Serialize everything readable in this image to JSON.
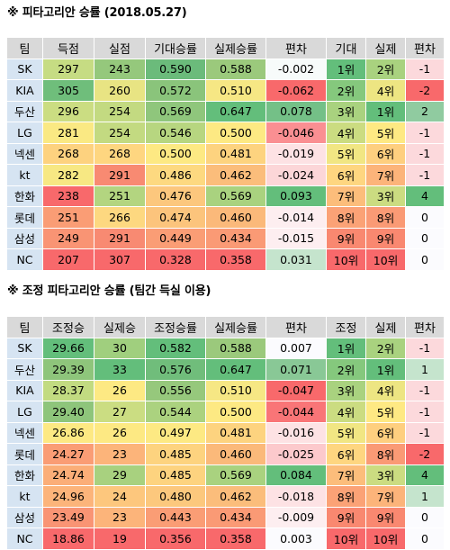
{
  "section1": {
    "title": "※ 피타고리안 승률 (2018.05.27)",
    "headers": [
      "팀",
      "득점",
      "실점",
      "기대승률",
      "실제승률",
      "편차",
      "기대",
      "실제",
      "편차"
    ],
    "rows": [
      [
        {
          "t": "SK"
        },
        {
          "t": "297",
          "c": "#c6dc83"
        },
        {
          "t": "243",
          "c": "#95c87c"
        },
        {
          "t": "0.590",
          "c": "#6bbb7b"
        },
        {
          "t": "0.588",
          "c": "#9bc97c"
        },
        {
          "t": "-0.002",
          "c": "#f7fbfa"
        },
        {
          "t": "1위",
          "c": "#63be7b"
        },
        {
          "t": "2위",
          "c": "#a9d27f"
        },
        {
          "t": "-1",
          "c": "#fcd9dc"
        }
      ],
      [
        {
          "t": "KIA"
        },
        {
          "t": "305",
          "c": "#6fbe7b"
        },
        {
          "t": "260",
          "c": "#e8e483"
        },
        {
          "t": "0.572",
          "c": "#8ac47b"
        },
        {
          "t": "0.510",
          "c": "#f6e784"
        },
        {
          "t": "-0.062",
          "c": "#f8696b"
        },
        {
          "t": "2위",
          "c": "#85c87d"
        },
        {
          "t": "4위",
          "c": "#ede582"
        },
        {
          "t": "-2",
          "c": "#f8696b"
        }
      ],
      [
        {
          "t": "두산"
        },
        {
          "t": "296",
          "c": "#cbdd82"
        },
        {
          "t": "254",
          "c": "#c3da81"
        },
        {
          "t": "0.569",
          "c": "#8fc67c"
        },
        {
          "t": "0.647",
          "c": "#63be7b"
        },
        {
          "t": "0.078",
          "c": "#74c087"
        },
        {
          "t": "3위",
          "c": "#a9d27f"
        },
        {
          "t": "1위",
          "c": "#63be7b"
        },
        {
          "t": "2",
          "c": "#90cba0"
        }
      ],
      [
        {
          "t": "LG"
        },
        {
          "t": "281",
          "c": "#fae983"
        },
        {
          "t": "254",
          "c": "#c3da81"
        },
        {
          "t": "0.546",
          "c": "#b7d680"
        },
        {
          "t": "0.500",
          "c": "#fde983"
        },
        {
          "t": "-0.046",
          "c": "#fa8f92"
        },
        {
          "t": "4위",
          "c": "#cbdc81"
        },
        {
          "t": "5위",
          "c": "#fee983"
        },
        {
          "t": "-1",
          "c": "#fcd9dc"
        }
      ],
      [
        {
          "t": "넥센"
        },
        {
          "t": "268",
          "c": "#fdd27f"
        },
        {
          "t": "268",
          "c": "#fed680"
        },
        {
          "t": "0.500",
          "c": "#fde983"
        },
        {
          "t": "0.481",
          "c": "#fdd37f"
        },
        {
          "t": "-0.019",
          "c": "#fde2e4"
        },
        {
          "t": "5위",
          "c": "#f1e683"
        },
        {
          "t": "6위",
          "c": "#fecf7f"
        },
        {
          "t": "-1",
          "c": "#fcd9dc"
        }
      ],
      [
        {
          "t": "kt"
        },
        {
          "t": "282",
          "c": "#f7e883"
        },
        {
          "t": "291",
          "c": "#f88a72"
        },
        {
          "t": "0.486",
          "c": "#fdd980"
        },
        {
          "t": "0.462",
          "c": "#fbbd7b"
        },
        {
          "t": "-0.024",
          "c": "#fcd6d8"
        },
        {
          "t": "6위",
          "c": "#fed680"
        },
        {
          "t": "7위",
          "c": "#fcb47a"
        },
        {
          "t": "-1",
          "c": "#fcd9dc"
        }
      ],
      [
        {
          "t": "한화"
        },
        {
          "t": "238",
          "c": "#f8696b"
        },
        {
          "t": "251",
          "c": "#b3d580"
        },
        {
          "t": "0.476",
          "c": "#fcc77d"
        },
        {
          "t": "0.569",
          "c": "#a9d27f"
        },
        {
          "t": "0.093",
          "c": "#63be7b"
        },
        {
          "t": "7위",
          "c": "#fcbd7b"
        },
        {
          "t": "3위",
          "c": "#cbdc81"
        },
        {
          "t": "4",
          "c": "#63be7b"
        }
      ],
      [
        {
          "t": "롯데"
        },
        {
          "t": "251",
          "c": "#fa9d75"
        },
        {
          "t": "266",
          "c": "#fdd880"
        },
        {
          "t": "0.474",
          "c": "#fcc47c"
        },
        {
          "t": "0.460",
          "c": "#fbb97a"
        },
        {
          "t": "-0.014",
          "c": "#fdeef0"
        },
        {
          "t": "8위",
          "c": "#fba276"
        },
        {
          "t": "8위",
          "c": "#fa9a75"
        },
        {
          "t": "0",
          "c": "#fbfbfe"
        }
      ],
      [
        {
          "t": "삼성"
        },
        {
          "t": "249",
          "c": "#f99474"
        },
        {
          "t": "291",
          "c": "#f88a72"
        },
        {
          "t": "0.449",
          "c": "#fa9d75"
        },
        {
          "t": "0.434",
          "c": "#fa9a75"
        },
        {
          "t": "-0.015",
          "c": "#fdeef0"
        },
        {
          "t": "9위",
          "c": "#f98870"
        },
        {
          "t": "9위",
          "c": "#f98870"
        },
        {
          "t": "0",
          "c": "#fbfbfe"
        }
      ],
      [
        {
          "t": "NC"
        },
        {
          "t": "207",
          "c": "#f8696b"
        },
        {
          "t": "307",
          "c": "#f8696b"
        },
        {
          "t": "0.328",
          "c": "#f8696b"
        },
        {
          "t": "0.358",
          "c": "#f8696b"
        },
        {
          "t": "0.031",
          "c": "#c5e4cd"
        },
        {
          "t": "10위",
          "c": "#f8696b"
        },
        {
          "t": "10위",
          "c": "#f8696b"
        },
        {
          "t": "0",
          "c": "#fbfbfe"
        }
      ]
    ]
  },
  "section2": {
    "title": "※ 조정 피타고리안 승률 (팀간 득실 이용)",
    "headers": [
      "팀",
      "조정승",
      "실제승",
      "조정승률",
      "실제승률",
      "편차",
      "조정",
      "실제",
      "편차"
    ],
    "rows": [
      [
        {
          "t": "SK"
        },
        {
          "t": "29.66",
          "c": "#63be7b"
        },
        {
          "t": "30",
          "c": "#a0cf7e"
        },
        {
          "t": "0.582",
          "c": "#63be7b"
        },
        {
          "t": "0.588",
          "c": "#9bc97c"
        },
        {
          "t": "0.007",
          "c": "#fbfbfe"
        },
        {
          "t": "1위",
          "c": "#63be7b"
        },
        {
          "t": "2위",
          "c": "#a9d27f"
        },
        {
          "t": "-1",
          "c": "#fcd9dc"
        }
      ],
      [
        {
          "t": "두산"
        },
        {
          "t": "29.39",
          "c": "#8ec57b"
        },
        {
          "t": "33",
          "c": "#63be7b"
        },
        {
          "t": "0.576",
          "c": "#70bd7b"
        },
        {
          "t": "0.647",
          "c": "#63be7b"
        },
        {
          "t": "0.071",
          "c": "#89c896"
        },
        {
          "t": "2위",
          "c": "#85c87d"
        },
        {
          "t": "1위",
          "c": "#63be7b"
        },
        {
          "t": "1",
          "c": "#c5e4cd"
        }
      ],
      [
        {
          "t": "KIA"
        },
        {
          "t": "28.37",
          "c": "#c2db81"
        },
        {
          "t": "26",
          "c": "#fde983"
        },
        {
          "t": "0.556",
          "c": "#96c87c"
        },
        {
          "t": "0.510",
          "c": "#f6e784"
        },
        {
          "t": "-0.047",
          "c": "#f8696b"
        },
        {
          "t": "3위",
          "c": "#a9d27f"
        },
        {
          "t": "4위",
          "c": "#ede582"
        },
        {
          "t": "-1",
          "c": "#fcd9dc"
        }
      ],
      [
        {
          "t": "LG"
        },
        {
          "t": "29.40",
          "c": "#8ec57b"
        },
        {
          "t": "27",
          "c": "#cbdd82"
        },
        {
          "t": "0.544",
          "c": "#abd27f"
        },
        {
          "t": "0.500",
          "c": "#fde983"
        },
        {
          "t": "-0.044",
          "c": "#f97577"
        },
        {
          "t": "4위",
          "c": "#cbdc81"
        },
        {
          "t": "5위",
          "c": "#fee983"
        },
        {
          "t": "-1",
          "c": "#fcd9dc"
        }
      ],
      [
        {
          "t": "넥센"
        },
        {
          "t": "26.86",
          "c": "#fde983"
        },
        {
          "t": "26",
          "c": "#fde983"
        },
        {
          "t": "0.497",
          "c": "#fde983"
        },
        {
          "t": "0.481",
          "c": "#fdd37f"
        },
        {
          "t": "-0.016",
          "c": "#fde2e4"
        },
        {
          "t": "5위",
          "c": "#f1e683"
        },
        {
          "t": "6위",
          "c": "#fecf7f"
        },
        {
          "t": "-1",
          "c": "#fcd9dc"
        }
      ],
      [
        {
          "t": "롯데"
        },
        {
          "t": "24.27",
          "c": "#fa9d75"
        },
        {
          "t": "23",
          "c": "#fcb47a"
        },
        {
          "t": "0.485",
          "c": "#fdd37f"
        },
        {
          "t": "0.460",
          "c": "#fbb97a"
        },
        {
          "t": "-0.025",
          "c": "#fcc9cc"
        },
        {
          "t": "6위",
          "c": "#fed680"
        },
        {
          "t": "8위",
          "c": "#fa9a75"
        },
        {
          "t": "-2",
          "c": "#f8696b"
        }
      ],
      [
        {
          "t": "한화"
        },
        {
          "t": "24.74",
          "c": "#fbae78"
        },
        {
          "t": "29",
          "c": "#a8d17f"
        },
        {
          "t": "0.485",
          "c": "#fdd37f"
        },
        {
          "t": "0.569",
          "c": "#a9d27f"
        },
        {
          "t": "0.084",
          "c": "#63be7b"
        },
        {
          "t": "7위",
          "c": "#fcbd7b"
        },
        {
          "t": "3위",
          "c": "#cbdc81"
        },
        {
          "t": "4",
          "c": "#63be7b"
        }
      ],
      [
        {
          "t": "kt"
        },
        {
          "t": "24.96",
          "c": "#fcb47a"
        },
        {
          "t": "24",
          "c": "#fdc77d"
        },
        {
          "t": "0.480",
          "c": "#fcc87d"
        },
        {
          "t": "0.462",
          "c": "#fbbd7b"
        },
        {
          "t": "-0.018",
          "c": "#fde2e4"
        },
        {
          "t": "8위",
          "c": "#fba276"
        },
        {
          "t": "7위",
          "c": "#fcb47a"
        },
        {
          "t": "1",
          "c": "#c5e4cd"
        }
      ],
      [
        {
          "t": "삼성"
        },
        {
          "t": "23.49",
          "c": "#f99474"
        },
        {
          "t": "23",
          "c": "#fcb47a"
        },
        {
          "t": "0.443",
          "c": "#fa9d75"
        },
        {
          "t": "0.434",
          "c": "#fa9a75"
        },
        {
          "t": "-0.009",
          "c": "#fdeef0"
        },
        {
          "t": "9위",
          "c": "#f98870"
        },
        {
          "t": "9위",
          "c": "#f98870"
        },
        {
          "t": "0",
          "c": "#fbfbfe"
        }
      ],
      [
        {
          "t": "NC"
        },
        {
          "t": "18.86",
          "c": "#f8696b"
        },
        {
          "t": "19",
          "c": "#f8696b"
        },
        {
          "t": "0.356",
          "c": "#f8696b"
        },
        {
          "t": "0.358",
          "c": "#f8696b"
        },
        {
          "t": "0.003",
          "c": "#fbfbfe"
        },
        {
          "t": "10위",
          "c": "#f8696b"
        },
        {
          "t": "10위",
          "c": "#f8696b"
        },
        {
          "t": "0",
          "c": "#fbfbfe"
        }
      ]
    ]
  }
}
